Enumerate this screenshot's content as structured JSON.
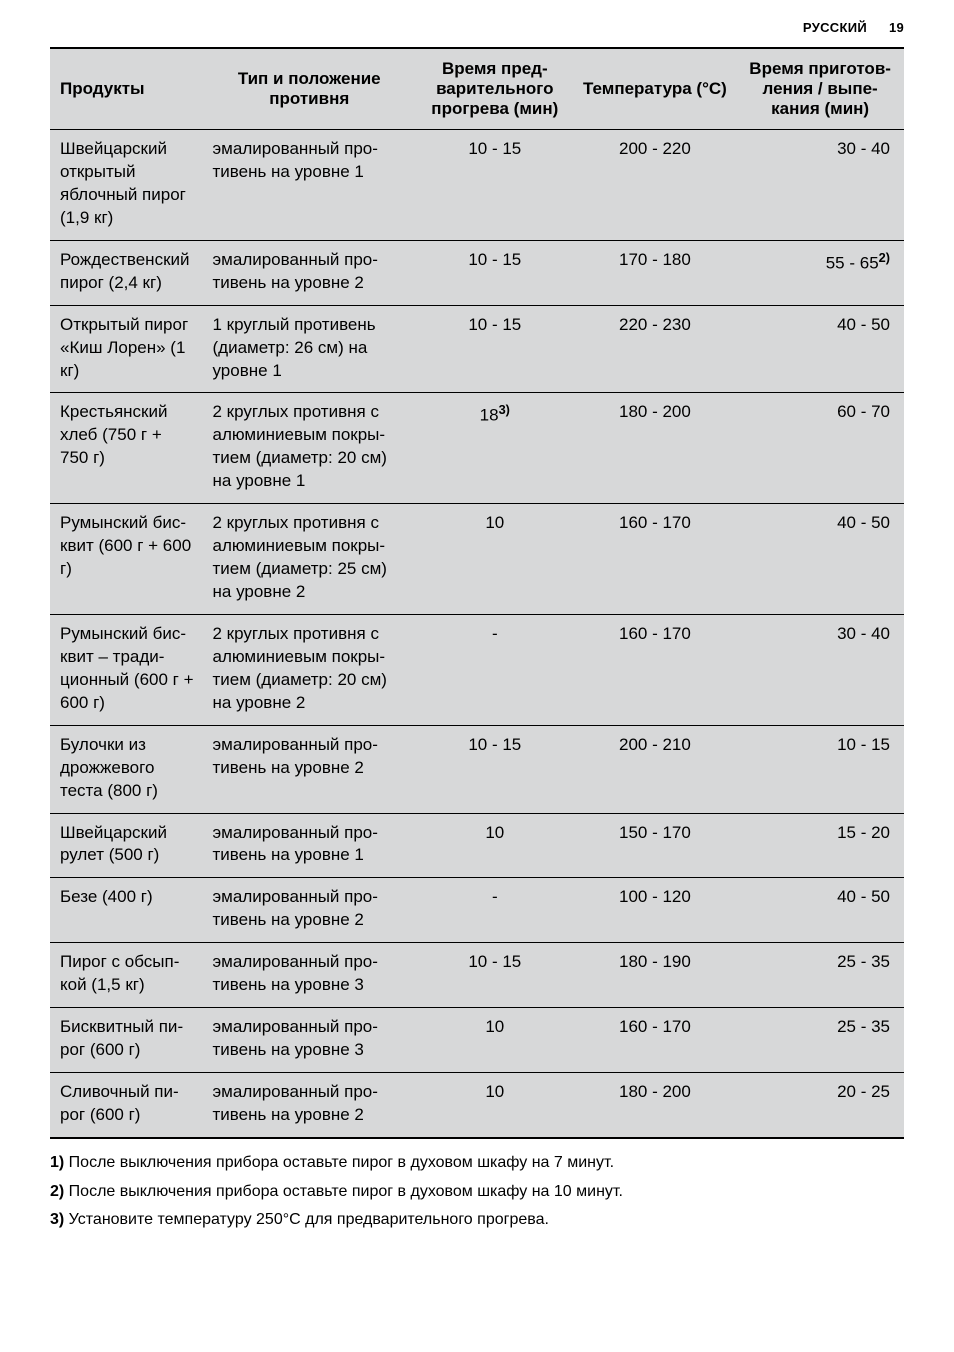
{
  "header": {
    "lang": "РУССКИЙ",
    "page": "19"
  },
  "table": {
    "columns": [
      {
        "label": "Продукты",
        "align": "left"
      },
      {
        "label": "Тип и положение противня",
        "align": "center"
      },
      {
        "label": "Время пред­варительного прогрева (мин)",
        "align": "center"
      },
      {
        "label": "Температура (°C)",
        "align": "center"
      },
      {
        "label": "Время приготов­ления / выпе­кания (мин)",
        "align": "center"
      }
    ],
    "rows": [
      {
        "product": "Швейцарский открытый яблочный пирог (1,9 кг)",
        "tray": "эмалированный про­тивень на уровне 1",
        "preheat": "10 - 15",
        "preheat_sup": "",
        "temp": "200 - 220",
        "time": "30 - 40",
        "time_sup": ""
      },
      {
        "product": "Рождественский пирог (2,4 кг)",
        "tray": "эмалированный про­тивень на уровне 2",
        "preheat": "10 - 15",
        "preheat_sup": "",
        "temp": "170 - 180",
        "time": "55 - 65",
        "time_sup": "2)"
      },
      {
        "product": "Открытый пирог «Киш Лорен» (1 кг)",
        "tray": "1 круглый противень (диаметр: 26 см) на уровне 1",
        "preheat": "10 - 15",
        "preheat_sup": "",
        "temp": "220 - 230",
        "time": "40 - 50",
        "time_sup": ""
      },
      {
        "product": "Крестьянский хлеб (750 г + 750 г)",
        "tray": "2 круглых противня с алюминиевым покры­тием (диаметр: 20 см) на уровне 1",
        "preheat": "18",
        "preheat_sup": "3)",
        "temp": "180 - 200",
        "time": "60 - 70",
        "time_sup": ""
      },
      {
        "product": "Румынский бис­квит (600 г + 600 г)",
        "tray": "2 круглых противня с алюминиевым покры­тием (диаметр: 25 см) на уровне 2",
        "preheat": "10",
        "preheat_sup": "",
        "temp": "160 - 170",
        "time": "40 - 50",
        "time_sup": ""
      },
      {
        "product": "Румынский бис­квит – тради­ционный (600 г + 600 г)",
        "tray": "2 круглых противня с алюминиевым покры­тием (диаметр: 20 см) на уровне 2",
        "preheat": "-",
        "preheat_sup": "",
        "temp": "160 - 170",
        "time": "30 - 40",
        "time_sup": ""
      },
      {
        "product": "Булочки из дрожжевого теста (800 г)",
        "tray": "эмалированный про­тивень на уровне 2",
        "preheat": "10 - 15",
        "preheat_sup": "",
        "temp": "200 - 210",
        "time": "10 - 15",
        "time_sup": ""
      },
      {
        "product": "Швейцарский рулет (500 г)",
        "tray": "эмалированный про­тивень на уровне 1",
        "preheat": "10",
        "preheat_sup": "",
        "temp": "150 - 170",
        "time": "15 - 20",
        "time_sup": ""
      },
      {
        "product": "Безе (400 г)",
        "tray": "эмалированный про­тивень на уровне 2",
        "preheat": "-",
        "preheat_sup": "",
        "temp": "100 - 120",
        "time": "40 - 50",
        "time_sup": ""
      },
      {
        "product": "Пирог с обсып­кой (1,5 кг)",
        "tray": "эмалированный про­тивень на уровне 3",
        "preheat": "10 - 15",
        "preheat_sup": "",
        "temp": "180 - 190",
        "time": "25 - 35",
        "time_sup": ""
      },
      {
        "product": "Бисквитный пи­рог (600 г)",
        "tray": "эмалированный про­тивень на уровне 3",
        "preheat": "10",
        "preheat_sup": "",
        "temp": "160 - 170",
        "time": "25 - 35",
        "time_sup": ""
      },
      {
        "product": "Сливочный пи­рог (600 г)",
        "tray": "эмалированный про­тивень на уровне 2",
        "preheat": "10",
        "preheat_sup": "",
        "temp": "180 - 200",
        "time": "20 - 25",
        "time_sup": ""
      }
    ]
  },
  "footnotes": [
    {
      "num": "1)",
      "text": "После выключения прибора оставьте пирог в духовом шкафу на 7 минут."
    },
    {
      "num": "2)",
      "text": "После выключения прибора оставьте пирог в духовом шкафу на 10 минут."
    },
    {
      "num": "3)",
      "text": "Установите температуру 250°C для предварительного прогрева."
    }
  ]
}
